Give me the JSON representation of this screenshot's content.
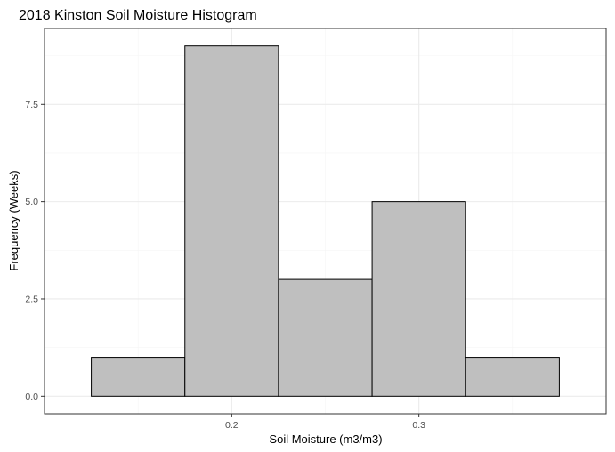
{
  "chart_data": {
    "type": "bar",
    "title": "2018 Kinston Soil Moisture Histogram",
    "xlabel": "Soil Moisture (m3/m3)",
    "ylabel": "Frequency (Weeks)",
    "bins": [
      {
        "start": 0.125,
        "end": 0.175,
        "count": 1
      },
      {
        "start": 0.175,
        "end": 0.225,
        "count": 9
      },
      {
        "start": 0.225,
        "end": 0.275,
        "count": 3
      },
      {
        "start": 0.275,
        "end": 0.325,
        "count": 5
      },
      {
        "start": 0.325,
        "end": 0.375,
        "count": 1
      }
    ],
    "xlim": [
      0.1,
      0.4
    ],
    "ylim": [
      -0.45,
      9.45
    ],
    "x_ticks": [
      0.2,
      0.3
    ],
    "x_tick_labels": [
      "0.2",
      "0.3"
    ],
    "x_minor_ticks": [
      0.15,
      0.25,
      0.35
    ],
    "y_ticks": [
      0,
      2.5,
      5,
      7.5
    ],
    "y_tick_labels": [
      "0.0",
      "2.5",
      "5.0",
      "7.5"
    ],
    "y_minor_ticks": [
      1.25,
      3.75,
      6.25,
      8.75
    ],
    "grid": true,
    "legend": "none",
    "colors": {
      "bar_fill": "#bfbfbf",
      "bar_stroke": "#000000",
      "grid_major": "#ebebeb",
      "grid_minor": "#f5f5f5",
      "panel_border": "#333333",
      "tick_text": "#4d4d4d"
    }
  }
}
